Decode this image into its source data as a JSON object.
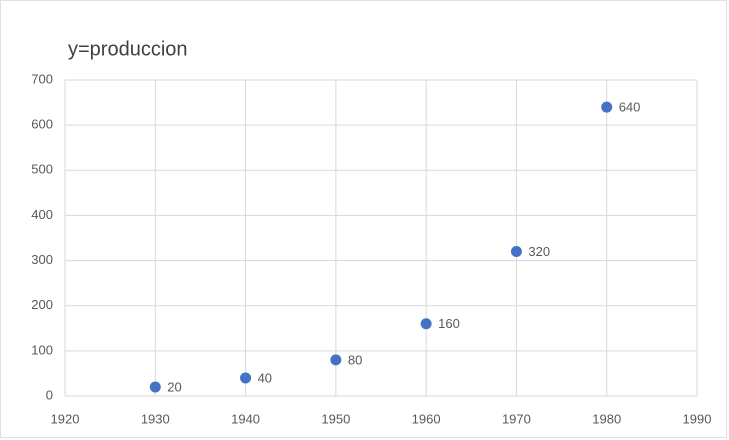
{
  "chart_data": {
    "type": "scatter",
    "title": "y=produccion",
    "series": [
      {
        "name": "y=produccion",
        "color": "#4472c4",
        "x": [
          1930,
          1940,
          1950,
          1960,
          1970,
          1980
        ],
        "values": [
          20,
          40,
          80,
          160,
          320,
          640
        ]
      }
    ],
    "xlim": [
      1920,
      1990
    ],
    "xticks": [
      1920,
      1930,
      1940,
      1950,
      1960,
      1970,
      1980,
      1990
    ],
    "ylim": [
      0,
      700
    ],
    "yticks": [
      0,
      100,
      200,
      300,
      400,
      500,
      600,
      700
    ],
    "grid": true
  }
}
